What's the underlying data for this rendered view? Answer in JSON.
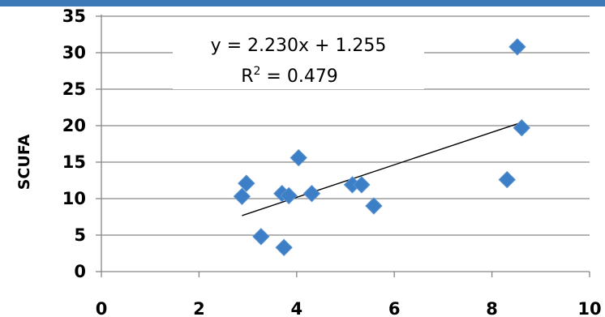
{
  "chart_data": {
    "type": "scatter",
    "title": "",
    "xlabel": "",
    "ylabel": "SCUFA",
    "xlim": [
      0,
      10
    ],
    "ylim": [
      0,
      35
    ],
    "x_ticks": [
      "0",
      "2",
      "4",
      "6",
      "8",
      "10"
    ],
    "y_ticks": [
      "0",
      "5",
      "10",
      "15",
      "20",
      "25",
      "30",
      "35"
    ],
    "grid": "horizontal",
    "legend": "none",
    "marker": "diamond",
    "marker_color": "#3d7fc6",
    "series": [
      {
        "points": [
          {
            "x": 2.88,
            "y": 10.3
          },
          {
            "x": 2.97,
            "y": 12.1
          },
          {
            "x": 3.27,
            "y": 4.8
          },
          {
            "x": 3.7,
            "y": 10.7
          },
          {
            "x": 3.74,
            "y": 3.3
          },
          {
            "x": 3.84,
            "y": 10.4
          },
          {
            "x": 4.04,
            "y": 15.6
          },
          {
            "x": 4.31,
            "y": 10.7
          },
          {
            "x": 5.14,
            "y": 11.9
          },
          {
            "x": 5.33,
            "y": 11.9
          },
          {
            "x": 5.58,
            "y": 9.0
          },
          {
            "x": 8.31,
            "y": 12.6
          },
          {
            "x": 8.52,
            "y": 30.8
          },
          {
            "x": 8.61,
            "y": 19.7
          }
        ]
      }
    ],
    "trendline": {
      "type": "linear",
      "slope": 2.23,
      "intercept": 1.255,
      "x_range": [
        2.88,
        8.55
      ],
      "color": "#000000"
    },
    "annotation": {
      "equation": "y = 2.230x + 1.255",
      "r2_label": "R",
      "r2_sup": "2",
      "r2_value": " = 0.479"
    },
    "colors": {
      "top_bar": "#3d78b7",
      "grid": "#868686",
      "axis": "#868686"
    }
  }
}
